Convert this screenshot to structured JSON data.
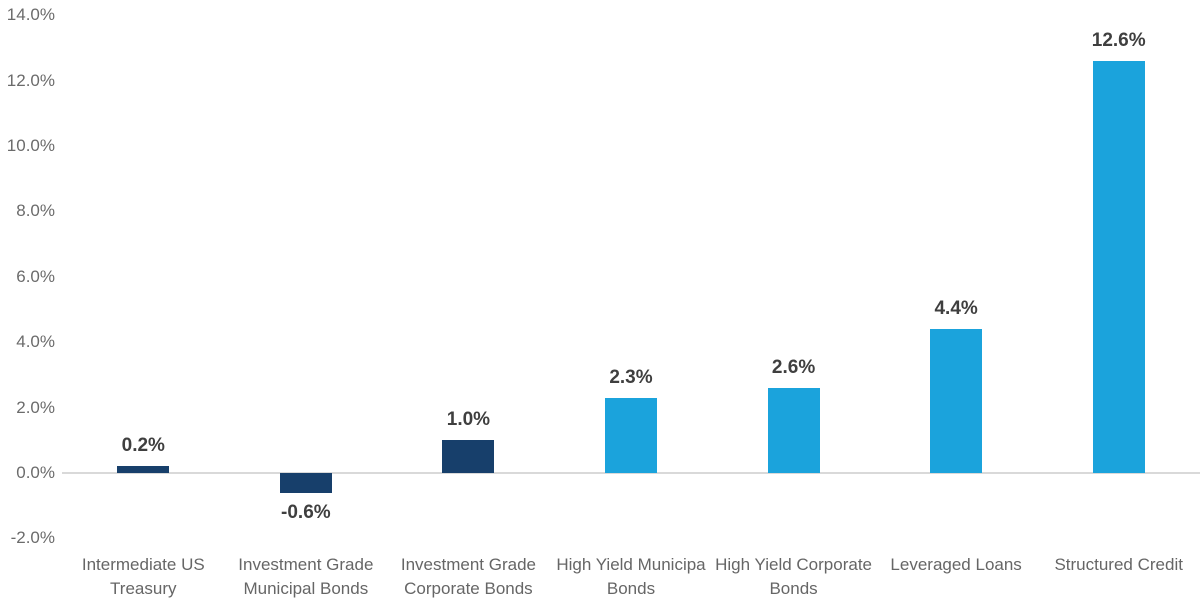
{
  "chart_data": {
    "type": "bar",
    "title": "",
    "xlabel": "",
    "ylabel": "",
    "legend": null,
    "grid": false,
    "categories": [
      "Intermediate US Treasury",
      "Investment Grade Municipal Bonds",
      "Investment Grade Corporate Bonds",
      "High Yield Municipal Bonds",
      "High Yield Corporate Bonds",
      "Leveraged Loans",
      "Structured Credit"
    ],
    "values": [
      0.2,
      -0.6,
      1.0,
      2.3,
      2.6,
      4.4,
      12.6
    ],
    "value_labels": [
      "0.2%",
      "-0.6%",
      "1.0%",
      "2.3%",
      "2.6%",
      "4.4%",
      "12.6%"
    ],
    "category_label_lines": [
      [
        "Intermediate US",
        "Treasury"
      ],
      [
        "Investment Grade",
        "Municipal Bonds"
      ],
      [
        "Investment Grade",
        "Corporate Bonds"
      ],
      [
        "High Yield Municipa",
        "Bonds"
      ],
      [
        "High Yield Corporate",
        "Bonds"
      ],
      [
        "Leveraged Loans"
      ],
      [
        "Structured Credit"
      ]
    ],
    "bar_colors": [
      "#173f6b",
      "#173f6b",
      "#173f6b",
      "#1ba3dc",
      "#1ba3dc",
      "#1ba3dc",
      "#1ba3dc"
    ],
    "ylim": [
      -2,
      14
    ],
    "y_ticks": [
      {
        "value": 14,
        "label": "14.0%"
      },
      {
        "value": 12,
        "label": "12.0%"
      },
      {
        "value": 10,
        "label": "10.0%"
      },
      {
        "value": 8,
        "label": "8.0%"
      },
      {
        "value": 6,
        "label": "6.0%"
      },
      {
        "value": 4,
        "label": "4.0%"
      },
      {
        "value": 2,
        "label": "2.0%"
      },
      {
        "value": 0,
        "label": "0.0%"
      },
      {
        "value": -2,
        "label": "-2.0%"
      }
    ]
  },
  "colors": {
    "navy": "#173f6b",
    "light_blue": "#1ba3dc",
    "value_label_text": "#3f3f3f",
    "axis_tick_text": "#6b6b6b",
    "category_text": "#666666",
    "zero_line": "#d9d9d9",
    "background": "#ffffff"
  }
}
